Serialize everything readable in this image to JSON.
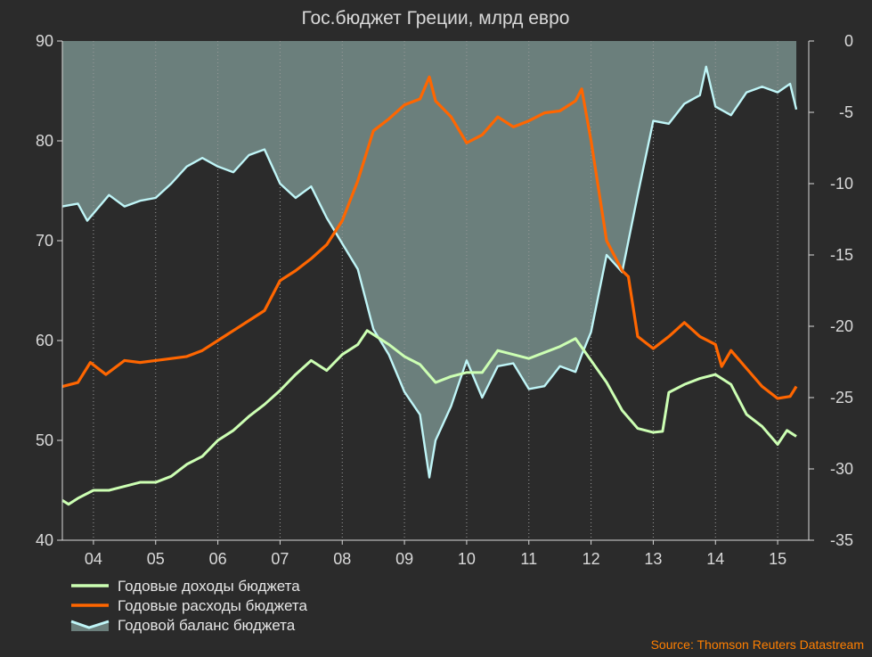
{
  "chart_data": {
    "type": "line",
    "title": "Гос.бюджет Греции, млрд евро",
    "source": "Source: Thomson Reuters Datastream",
    "x_labels": [
      "04",
      "05",
      "06",
      "07",
      "08",
      "09",
      "10",
      "11",
      "12",
      "13",
      "14",
      "15"
    ],
    "y_left": {
      "min": 40,
      "max": 90,
      "ticks": [
        40,
        50,
        60,
        70,
        80,
        90
      ]
    },
    "y_right": {
      "min": -35,
      "max": 0,
      "ticks": [
        0,
        -5,
        -10,
        -15,
        -20,
        -25,
        -30,
        -35
      ]
    },
    "x_range": [
      2003.5,
      2015.5
    ],
    "grid": "vertical dotted",
    "legend_position": "bottom-left",
    "colors": {
      "revenue": "#ccffb3",
      "spending": "#ff6600",
      "balance_fill": "#6b7f7c",
      "balance_line": "#bff5f7",
      "background": "#2b2b2b"
    },
    "series": [
      {
        "name": "Годовые доходы бюджета",
        "axis": "left",
        "kind": "line",
        "points": [
          [
            2003.5,
            44.0
          ],
          [
            2003.6,
            43.6
          ],
          [
            2003.75,
            44.2
          ],
          [
            2004.0,
            45.0
          ],
          [
            2004.25,
            45.0
          ],
          [
            2004.5,
            45.4
          ],
          [
            2004.75,
            45.8
          ],
          [
            2005.0,
            45.8
          ],
          [
            2005.25,
            46.4
          ],
          [
            2005.5,
            47.6
          ],
          [
            2005.75,
            48.4
          ],
          [
            2006.0,
            50.0
          ],
          [
            2006.25,
            51.0
          ],
          [
            2006.5,
            52.4
          ],
          [
            2006.75,
            53.6
          ],
          [
            2007.0,
            55.0
          ],
          [
            2007.25,
            56.6
          ],
          [
            2007.5,
            58.0
          ],
          [
            2007.75,
            57.0
          ],
          [
            2008.0,
            58.6
          ],
          [
            2008.25,
            59.6
          ],
          [
            2008.4,
            61.0
          ],
          [
            2008.5,
            60.6
          ],
          [
            2008.75,
            59.6
          ],
          [
            2009.0,
            58.4
          ],
          [
            2009.25,
            57.6
          ],
          [
            2009.5,
            55.8
          ],
          [
            2009.75,
            56.4
          ],
          [
            2010.0,
            56.8
          ],
          [
            2010.25,
            56.8
          ],
          [
            2010.5,
            59.0
          ],
          [
            2010.75,
            58.6
          ],
          [
            2011.0,
            58.2
          ],
          [
            2011.25,
            58.8
          ],
          [
            2011.5,
            59.4
          ],
          [
            2011.75,
            60.2
          ],
          [
            2012.0,
            58.0
          ],
          [
            2012.25,
            55.8
          ],
          [
            2012.5,
            53.0
          ],
          [
            2012.75,
            51.2
          ],
          [
            2013.0,
            50.8
          ],
          [
            2013.15,
            50.9
          ],
          [
            2013.25,
            54.8
          ],
          [
            2013.5,
            55.6
          ],
          [
            2013.75,
            56.2
          ],
          [
            2014.0,
            56.6
          ],
          [
            2014.25,
            55.6
          ],
          [
            2014.5,
            52.6
          ],
          [
            2014.75,
            51.4
          ],
          [
            2015.0,
            49.6
          ],
          [
            2015.15,
            51.0
          ],
          [
            2015.3,
            50.4
          ]
        ]
      },
      {
        "name": "Годовые расходы бюджета",
        "axis": "left",
        "kind": "line",
        "points": [
          [
            2003.5,
            55.4
          ],
          [
            2003.75,
            55.8
          ],
          [
            2003.95,
            57.8
          ],
          [
            2004.2,
            56.6
          ],
          [
            2004.5,
            58.0
          ],
          [
            2004.75,
            57.8
          ],
          [
            2005.0,
            58.0
          ],
          [
            2005.25,
            58.2
          ],
          [
            2005.5,
            58.4
          ],
          [
            2005.75,
            59.0
          ],
          [
            2006.0,
            60.0
          ],
          [
            2006.25,
            61.0
          ],
          [
            2006.5,
            62.0
          ],
          [
            2006.75,
            63.0
          ],
          [
            2007.0,
            66.0
          ],
          [
            2007.25,
            67.0
          ],
          [
            2007.5,
            68.2
          ],
          [
            2007.75,
            69.6
          ],
          [
            2008.0,
            72.0
          ],
          [
            2008.25,
            76.0
          ],
          [
            2008.5,
            81.0
          ],
          [
            2008.75,
            82.2
          ],
          [
            2009.0,
            83.6
          ],
          [
            2009.25,
            84.2
          ],
          [
            2009.4,
            86.4
          ],
          [
            2009.5,
            84.0
          ],
          [
            2009.75,
            82.4
          ],
          [
            2010.0,
            79.8
          ],
          [
            2010.25,
            80.6
          ],
          [
            2010.5,
            82.4
          ],
          [
            2010.75,
            81.4
          ],
          [
            2011.0,
            82.0
          ],
          [
            2011.25,
            82.8
          ],
          [
            2011.5,
            83.0
          ],
          [
            2011.75,
            84.0
          ],
          [
            2011.85,
            85.2
          ],
          [
            2012.0,
            80.0
          ],
          [
            2012.25,
            70.0
          ],
          [
            2012.5,
            67.0
          ],
          [
            2012.6,
            66.4
          ],
          [
            2012.75,
            60.4
          ],
          [
            2013.0,
            59.2
          ],
          [
            2013.25,
            60.4
          ],
          [
            2013.5,
            61.8
          ],
          [
            2013.75,
            60.4
          ],
          [
            2014.0,
            59.6
          ],
          [
            2014.1,
            57.4
          ],
          [
            2014.25,
            59.0
          ],
          [
            2014.5,
            57.2
          ],
          [
            2014.75,
            55.4
          ],
          [
            2015.0,
            54.2
          ],
          [
            2015.2,
            54.4
          ],
          [
            2015.3,
            55.4
          ]
        ]
      },
      {
        "name": "Годовой баланс бюджета",
        "axis": "right",
        "kind": "area",
        "points": [
          [
            2003.5,
            -11.6
          ],
          [
            2003.75,
            -11.4
          ],
          [
            2003.9,
            -12.6
          ],
          [
            2004.25,
            -10.8
          ],
          [
            2004.5,
            -11.6
          ],
          [
            2004.75,
            -11.2
          ],
          [
            2005.0,
            -11.0
          ],
          [
            2005.25,
            -10.0
          ],
          [
            2005.5,
            -8.8
          ],
          [
            2005.75,
            -8.2
          ],
          [
            2006.0,
            -8.8
          ],
          [
            2006.25,
            -9.2
          ],
          [
            2006.5,
            -8.0
          ],
          [
            2006.75,
            -7.6
          ],
          [
            2007.0,
            -10.0
          ],
          [
            2007.25,
            -11.0
          ],
          [
            2007.5,
            -10.2
          ],
          [
            2007.75,
            -12.4
          ],
          [
            2008.0,
            -14.2
          ],
          [
            2008.25,
            -16.0
          ],
          [
            2008.5,
            -20.2
          ],
          [
            2008.75,
            -22.0
          ],
          [
            2009.0,
            -24.6
          ],
          [
            2009.25,
            -26.2
          ],
          [
            2009.4,
            -30.6
          ],
          [
            2009.5,
            -28.0
          ],
          [
            2009.75,
            -25.6
          ],
          [
            2010.0,
            -22.4
          ],
          [
            2010.25,
            -25.0
          ],
          [
            2010.5,
            -22.8
          ],
          [
            2010.75,
            -22.6
          ],
          [
            2011.0,
            -24.4
          ],
          [
            2011.25,
            -24.2
          ],
          [
            2011.5,
            -22.8
          ],
          [
            2011.75,
            -23.2
          ],
          [
            2011.85,
            -22.0
          ],
          [
            2012.0,
            -20.4
          ],
          [
            2012.25,
            -15.0
          ],
          [
            2012.5,
            -16.2
          ],
          [
            2012.75,
            -10.8
          ],
          [
            2013.0,
            -5.6
          ],
          [
            2013.25,
            -5.8
          ],
          [
            2013.5,
            -4.4
          ],
          [
            2013.75,
            -3.8
          ],
          [
            2013.85,
            -1.8
          ],
          [
            2014.0,
            -4.6
          ],
          [
            2014.25,
            -5.2
          ],
          [
            2014.5,
            -3.6
          ],
          [
            2014.75,
            -3.2
          ],
          [
            2015.0,
            -3.6
          ],
          [
            2015.2,
            -3.0
          ],
          [
            2015.3,
            -4.8
          ]
        ]
      }
    ]
  }
}
